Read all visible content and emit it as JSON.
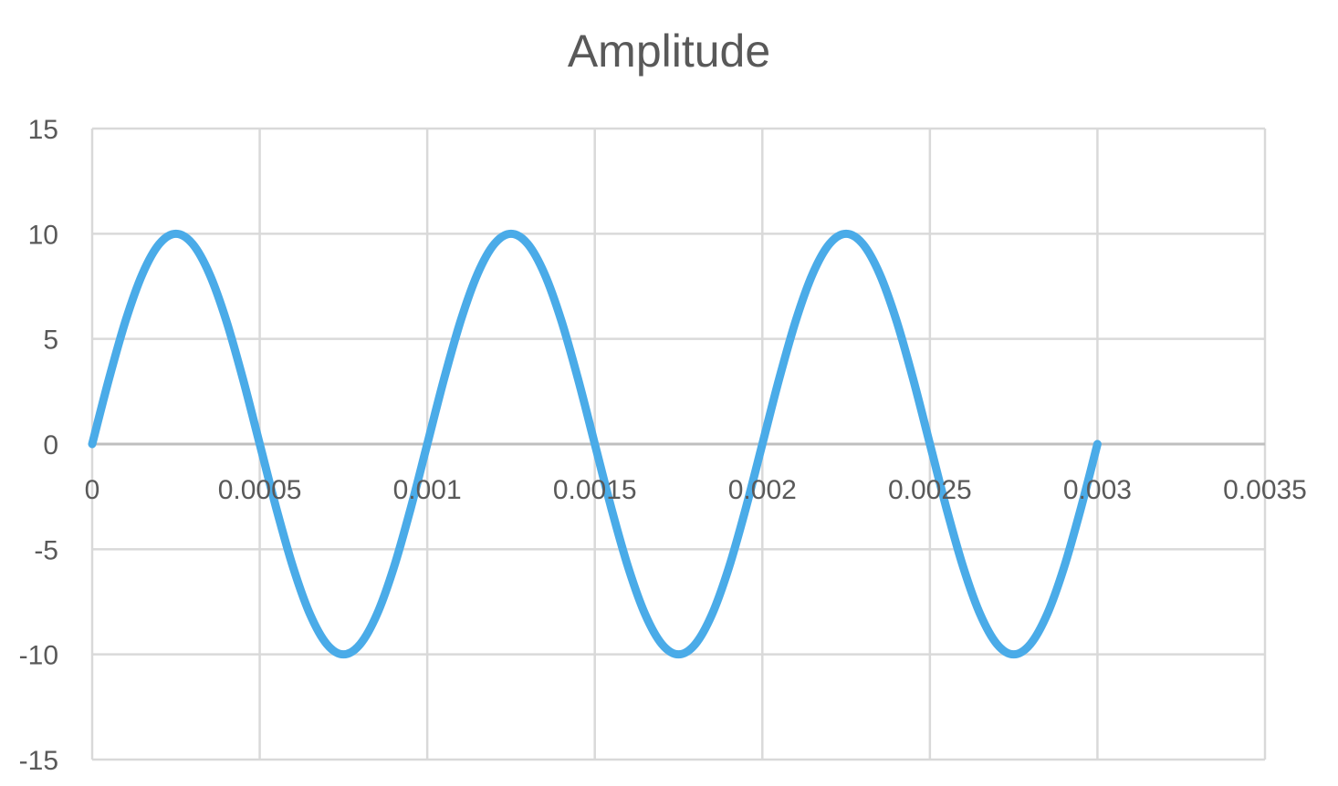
{
  "chart_data": {
    "type": "line",
    "title": "Amplitude",
    "xlabel": "",
    "ylabel": "",
    "xlim": [
      0,
      0.0035
    ],
    "ylim": [
      -15,
      15
    ],
    "x_ticks": [
      0,
      0.0005,
      0.001,
      0.0015,
      0.002,
      0.0025,
      0.003,
      0.0035
    ],
    "x_tick_labels": [
      "0",
      "0.0005",
      "0.001",
      "0.0015",
      "0.002",
      "0.0025",
      "0.003",
      "0.0035"
    ],
    "y_ticks": [
      -15,
      -10,
      -5,
      0,
      5,
      10,
      15
    ],
    "y_tick_labels": [
      "-15",
      "-10",
      "-5",
      "0",
      "5",
      "10",
      "15"
    ],
    "grid": true,
    "legend": "none",
    "series": [
      {
        "color": "#4AABE8",
        "x": [
          0,
          5e-05,
          0.0001,
          0.00015,
          0.0002,
          0.00025,
          0.0003,
          0.00035,
          0.0004,
          0.00045,
          0.0005,
          0.00055,
          0.0006,
          0.00065,
          0.0007,
          0.00075,
          0.0008,
          0.00085,
          0.0009,
          0.00095,
          0.001,
          0.00105,
          0.0011,
          0.00115,
          0.0012,
          0.00125,
          0.0013,
          0.00135,
          0.0014,
          0.00145,
          0.0015,
          0.00155,
          0.0016,
          0.00165,
          0.0017,
          0.00175,
          0.0018,
          0.00185,
          0.0019,
          0.00195,
          0.002,
          0.00205,
          0.0021,
          0.00215,
          0.0022,
          0.00225,
          0.0023,
          0.00235,
          0.0024,
          0.00245,
          0.0025,
          0.00255,
          0.0026,
          0.00265,
          0.0027,
          0.00275,
          0.0028,
          0.00285,
          0.0029,
          0.00295,
          0.003
        ],
        "y": [
          0,
          3.09,
          5.88,
          8.09,
          9.51,
          10,
          9.51,
          8.09,
          5.88,
          3.09,
          0,
          -3.09,
          -5.88,
          -8.09,
          -9.51,
          -10,
          -9.51,
          -8.09,
          -5.88,
          -3.09,
          0,
          3.09,
          5.88,
          8.09,
          9.51,
          10,
          9.51,
          8.09,
          5.88,
          3.09,
          0,
          -3.09,
          -5.88,
          -8.09,
          -9.51,
          -10,
          -9.51,
          -8.09,
          -5.88,
          -3.09,
          0,
          3.09,
          5.88,
          8.09,
          9.51,
          10,
          9.51,
          8.09,
          5.88,
          3.09,
          0,
          -3.09,
          -5.88,
          -8.09,
          -9.51,
          -10,
          -9.51,
          -8.09,
          -5.88,
          -3.09,
          0
        ]
      }
    ]
  },
  "colors": {
    "gridline": "#D9D9D9",
    "axis": "#BFBFBF",
    "text": "#595959",
    "series": "#4AABE8"
  }
}
